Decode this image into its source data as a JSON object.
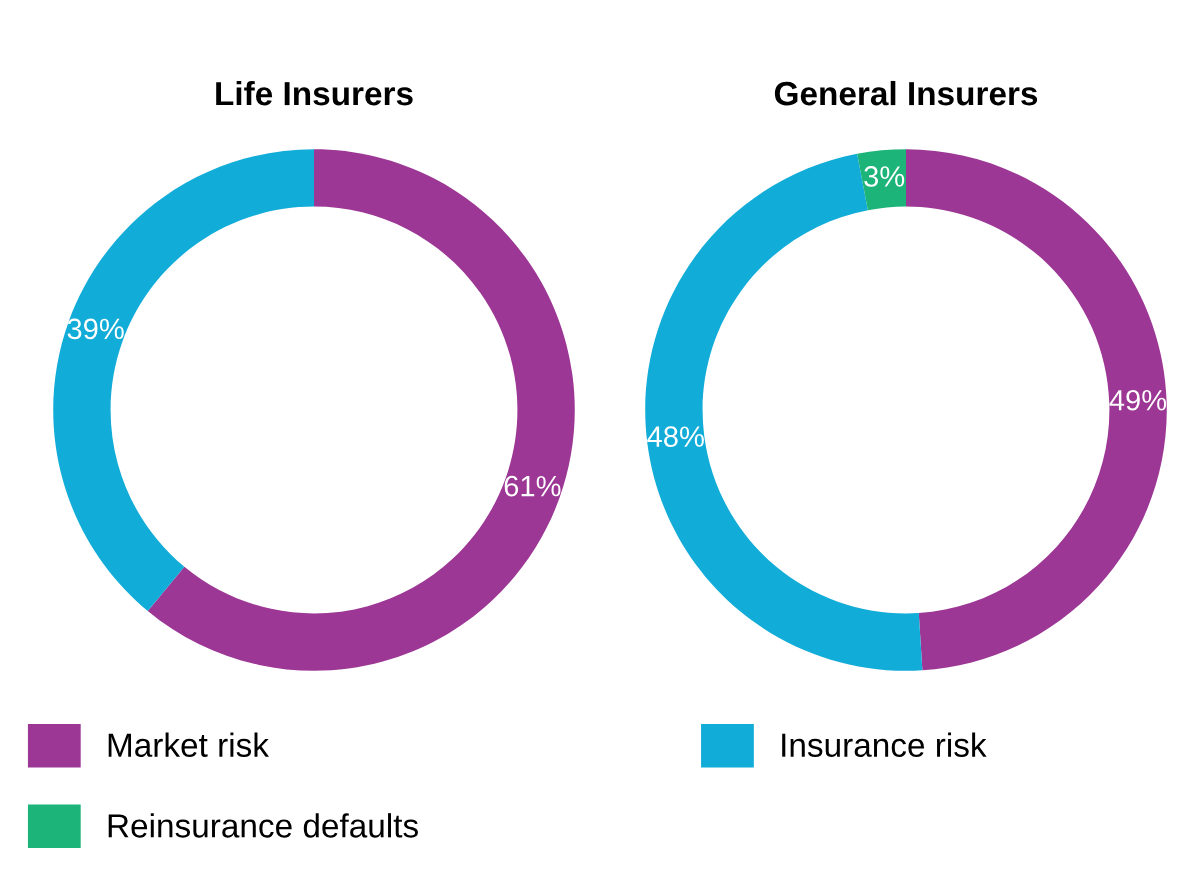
{
  "chart_data": [
    {
      "type": "donut",
      "title": "Life Insurers",
      "categories": [
        null,
        null
      ],
      "values": [
        61,
        39
      ],
      "value_labels": [
        "61%",
        "39%"
      ],
      "colors": [
        "#9c3795",
        "#12acd8"
      ]
    },
    {
      "type": "donut",
      "title": "General Insurers",
      "categories": [
        "Market risk",
        "Insurance risk",
        "Reinsurance defaults"
      ],
      "values": [
        49,
        48,
        3
      ],
      "value_labels": [
        "49%",
        "48%",
        "3%"
      ],
      "colors": [
        "#9c3795",
        "#12acd8",
        "#1db47a"
      ],
      "legend": "bottom"
    }
  ]
}
